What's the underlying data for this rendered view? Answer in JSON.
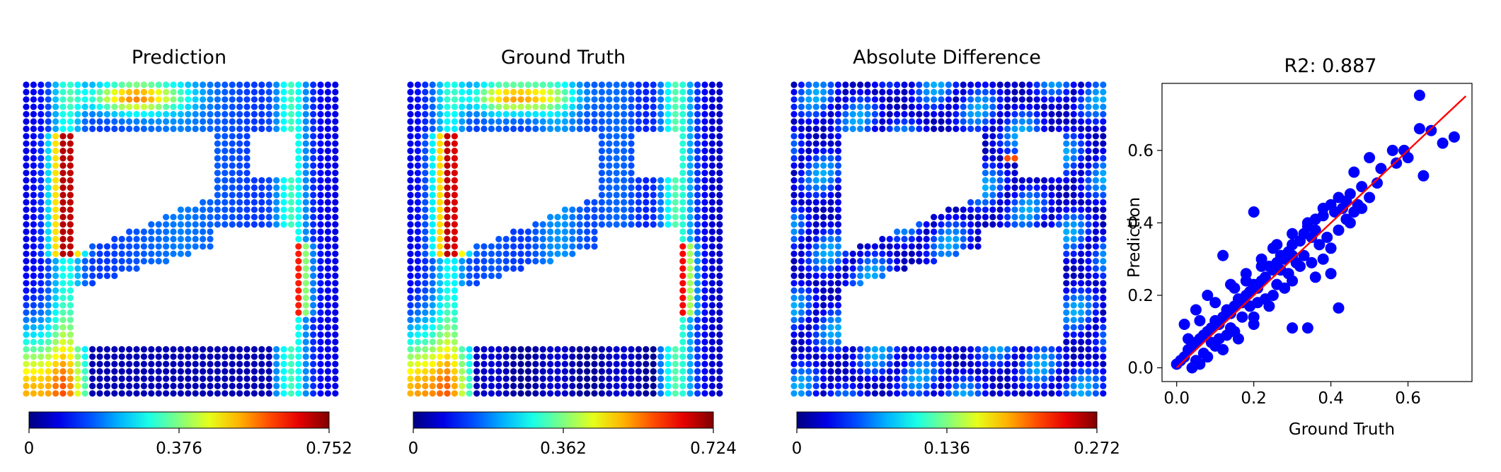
{
  "figure": {
    "panels": [
      {
        "title": "Prediction",
        "colorbar": {
          "colormap": "jet",
          "range": [
            0,
            0.752
          ],
          "ticks": [
            "0",
            "0.376",
            "0.752"
          ]
        }
      },
      {
        "title": "Ground Truth",
        "colorbar": {
          "colormap": "jet",
          "range": [
            0,
            0.724
          ],
          "ticks": [
            "0",
            "0.362",
            "0.724"
          ]
        }
      },
      {
        "title": "Absolute Difference",
        "colorbar": {
          "colormap": "jet",
          "range": [
            0,
            0.272
          ],
          "ticks": [
            "0",
            "0.136",
            "0.272"
          ]
        }
      }
    ]
  },
  "chart_data": [
    {
      "type": "heatmap",
      "title": "Prediction",
      "colormap": "jet",
      "range": [
        0,
        0.752
      ],
      "colorbar_ticks": [
        0,
        0.376,
        0.752
      ]
    },
    {
      "type": "heatmap",
      "title": "Ground Truth",
      "colormap": "jet",
      "range": [
        0,
        0.724
      ],
      "colorbar_ticks": [
        0,
        0.362,
        0.724
      ]
    },
    {
      "type": "heatmap",
      "title": "Absolute Difference",
      "colormap": "jet",
      "range": [
        0,
        0.272
      ],
      "colorbar_ticks": [
        0,
        0.136,
        0.272
      ]
    },
    {
      "type": "scatter",
      "title": "R2: 0.887",
      "xlabel": "Ground Truth",
      "ylabel": "Prediction",
      "xlim": [
        -0.038,
        0.766
      ],
      "ylim": [
        -0.038,
        0.785
      ],
      "xticks": [
        "0.0",
        "0.2",
        "0.4",
        "0.6"
      ],
      "yticks": [
        "0.0",
        "0.2",
        "0.4",
        "0.6"
      ],
      "point_color": "#0000ff",
      "fit_line": {
        "color": "#ff0000",
        "x": [
          0,
          0.75
        ],
        "y": [
          0,
          0.75
        ]
      },
      "points": [
        [
          0.63,
          0.752
        ],
        [
          0.63,
          0.66
        ],
        [
          0.66,
          0.655
        ],
        [
          0.72,
          0.637
        ],
        [
          0.69,
          0.62
        ],
        [
          0.56,
          0.6
        ],
        [
          0.59,
          0.6
        ],
        [
          0.6,
          0.58
        ],
        [
          0.57,
          0.565
        ],
        [
          0.64,
          0.53
        ],
        [
          0.5,
          0.58
        ],
        [
          0.53,
          0.55
        ],
        [
          0.46,
          0.54
        ],
        [
          0.52,
          0.51
        ],
        [
          0.48,
          0.5
        ],
        [
          0.45,
          0.48
        ],
        [
          0.5,
          0.47
        ],
        [
          0.47,
          0.45
        ],
        [
          0.44,
          0.46
        ],
        [
          0.43,
          0.44
        ],
        [
          0.41,
          0.43
        ],
        [
          0.4,
          0.45
        ],
        [
          0.38,
          0.42
        ],
        [
          0.36,
          0.41
        ],
        [
          0.34,
          0.39
        ],
        [
          0.35,
          0.36
        ],
        [
          0.33,
          0.37
        ],
        [
          0.32,
          0.35
        ],
        [
          0.3,
          0.34
        ],
        [
          0.29,
          0.32
        ],
        [
          0.28,
          0.3
        ],
        [
          0.27,
          0.31
        ],
        [
          0.26,
          0.29
        ],
        [
          0.25,
          0.27
        ],
        [
          0.24,
          0.28
        ],
        [
          0.23,
          0.25
        ],
        [
          0.22,
          0.24
        ],
        [
          0.21,
          0.22
        ],
        [
          0.2,
          0.23
        ],
        [
          0.19,
          0.21
        ],
        [
          0.18,
          0.2
        ],
        [
          0.17,
          0.18
        ],
        [
          0.16,
          0.19
        ],
        [
          0.15,
          0.17
        ],
        [
          0.14,
          0.15
        ],
        [
          0.13,
          0.16
        ],
        [
          0.12,
          0.14
        ],
        [
          0.11,
          0.12
        ],
        [
          0.1,
          0.13
        ],
        [
          0.09,
          0.11
        ],
        [
          0.08,
          0.1
        ],
        [
          0.07,
          0.09
        ],
        [
          0.06,
          0.08
        ],
        [
          0.05,
          0.07
        ],
        [
          0.04,
          0.06
        ],
        [
          0.03,
          0.05
        ],
        [
          0.02,
          0.03
        ],
        [
          0.01,
          0.02
        ],
        [
          0.0,
          0.01
        ],
        [
          0.05,
          0.02
        ],
        [
          0.1,
          0.06
        ],
        [
          0.15,
          0.1
        ],
        [
          0.2,
          0.14
        ],
        [
          0.25,
          0.2
        ],
        [
          0.3,
          0.24
        ],
        [
          0.35,
          0.29
        ],
        [
          0.4,
          0.33
        ],
        [
          0.45,
          0.4
        ],
        [
          0.02,
          0.12
        ],
        [
          0.05,
          0.16
        ],
        [
          0.08,
          0.2
        ],
        [
          0.2,
          0.43
        ],
        [
          0.12,
          0.31
        ],
        [
          0.25,
          0.33
        ],
        [
          0.22,
          0.3
        ],
        [
          0.18,
          0.26
        ],
        [
          0.14,
          0.23
        ],
        [
          0.1,
          0.18
        ],
        [
          0.06,
          0.13
        ],
        [
          0.3,
          0.11
        ],
        [
          0.34,
          0.11
        ],
        [
          0.42,
          0.165
        ],
        [
          0.4,
          0.26
        ],
        [
          0.38,
          0.3
        ],
        [
          0.36,
          0.25
        ],
        [
          0.32,
          0.28
        ],
        [
          0.28,
          0.22
        ],
        [
          0.24,
          0.17
        ],
        [
          0.2,
          0.12
        ],
        [
          0.16,
          0.08
        ],
        [
          0.12,
          0.05
        ],
        [
          0.08,
          0.03
        ],
        [
          0.04,
          0.0
        ],
        [
          0.06,
          0.01
        ],
        [
          0.03,
          0.08
        ],
        [
          0.11,
          0.08
        ],
        [
          0.14,
          0.11
        ],
        [
          0.17,
          0.14
        ],
        [
          0.19,
          0.17
        ],
        [
          0.23,
          0.19
        ],
        [
          0.26,
          0.23
        ],
        [
          0.29,
          0.26
        ],
        [
          0.31,
          0.29
        ],
        [
          0.33,
          0.31
        ],
        [
          0.37,
          0.34
        ],
        [
          0.39,
          0.36
        ],
        [
          0.42,
          0.38
        ],
        [
          0.44,
          0.41
        ],
        [
          0.46,
          0.43
        ],
        [
          0.48,
          0.44
        ],
        [
          0.36,
          0.38
        ],
        [
          0.3,
          0.31
        ],
        [
          0.27,
          0.27
        ],
        [
          0.21,
          0.18
        ],
        [
          0.13,
          0.09
        ],
        [
          0.09,
          0.07
        ],
        [
          0.07,
          0.04
        ],
        [
          0.15,
          0.22
        ],
        [
          0.18,
          0.24
        ],
        [
          0.22,
          0.28
        ],
        [
          0.26,
          0.34
        ],
        [
          0.3,
          0.37
        ],
        [
          0.34,
          0.4
        ],
        [
          0.38,
          0.44
        ],
        [
          0.42,
          0.47
        ]
      ]
    }
  ]
}
